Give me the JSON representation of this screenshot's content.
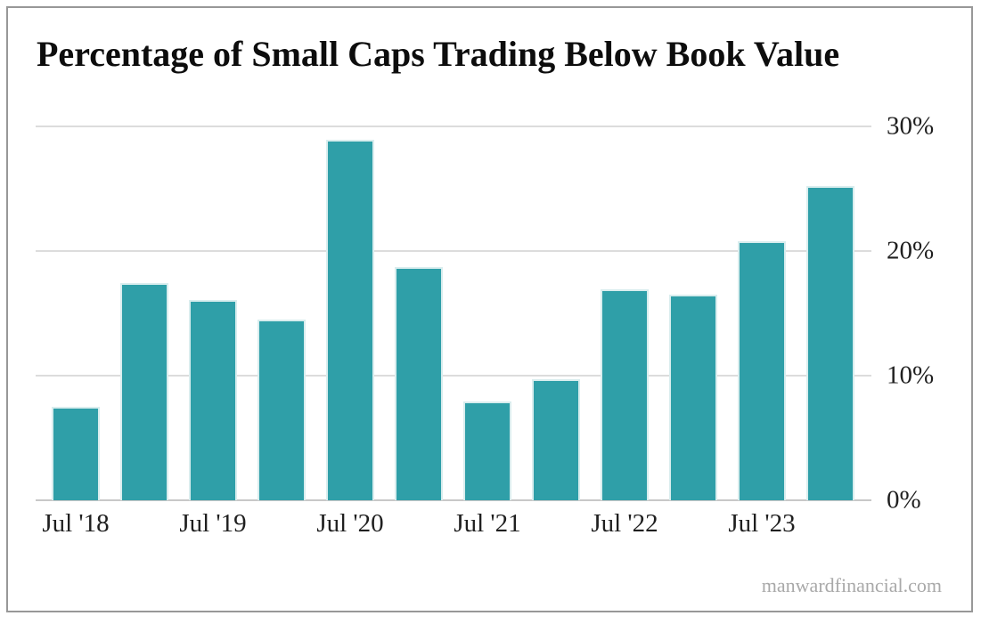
{
  "page": {
    "background": "#ffffff",
    "border_color": "#989898",
    "watermark": "manwardfinancial.com"
  },
  "chart_data": {
    "type": "bar",
    "title": "Percentage of Small Caps Trading Below Book Value",
    "unit": "%",
    "values": [
      7.5,
      17.4,
      16.1,
      14.5,
      28.9,
      18.7,
      7.9,
      9.7,
      16.9,
      16.5,
      20.8,
      25.2
    ],
    "x_tick_labels": [
      "Jul '18",
      "Jul '19",
      "Jul '20",
      "Jul '21",
      "Jul '22",
      "Jul '23"
    ],
    "x_tick_every_n_bars": 2,
    "y_tick_labels": [
      "0%",
      "10%",
      "20%",
      "30%"
    ],
    "ylim": [
      0,
      30
    ],
    "grid": "horizontal",
    "legend": "none",
    "y_axis_side": "right",
    "colors": {
      "bar": "#2f9fa8",
      "bar_edge": "#d9edee",
      "gridline": "#dcdcdc",
      "axis_line": "#c8c8c8",
      "label": "#1f1f1f",
      "title": "#0d0d0d",
      "watermark": "#a9a9a9"
    }
  }
}
